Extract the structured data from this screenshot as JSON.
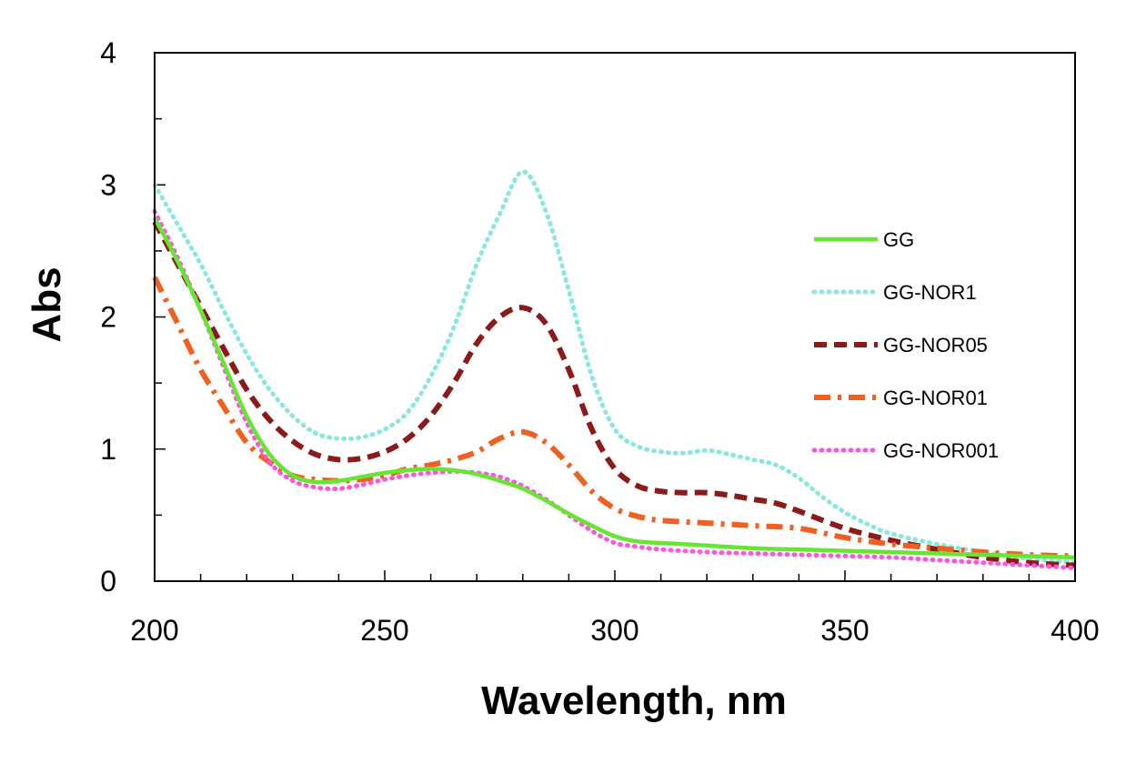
{
  "chart_data": {
    "type": "line",
    "title": "",
    "xlabel": "Wavelength, nm",
    "ylabel": "Abs",
    "xlim": [
      200,
      400
    ],
    "ylim": [
      0,
      4
    ],
    "xticks": [
      200,
      250,
      300,
      350,
      400
    ],
    "yticks": [
      0,
      1,
      2,
      3,
      4
    ],
    "x_minor_step": 10,
    "y_minor_step": 0.5,
    "grid": false,
    "legend_position": "right",
    "series": [
      {
        "name": "GG",
        "color": "#66e633",
        "style": "solid",
        "x": [
          200,
          205,
          210,
          215,
          220,
          225,
          230,
          235,
          240,
          245,
          250,
          255,
          260,
          265,
          270,
          275,
          280,
          285,
          290,
          295,
          300,
          305,
          310,
          320,
          330,
          340,
          350,
          360,
          370,
          380,
          390,
          400
        ],
        "y": [
          2.75,
          2.42,
          2.05,
          1.65,
          1.25,
          0.96,
          0.8,
          0.75,
          0.76,
          0.79,
          0.82,
          0.84,
          0.85,
          0.84,
          0.81,
          0.76,
          0.7,
          0.61,
          0.51,
          0.42,
          0.34,
          0.3,
          0.29,
          0.27,
          0.25,
          0.24,
          0.23,
          0.22,
          0.21,
          0.2,
          0.19,
          0.18
        ]
      },
      {
        "name": "GG-NOR1",
        "color": "#88e8dc",
        "style": "dotted",
        "x": [
          200,
          205,
          210,
          215,
          220,
          225,
          230,
          235,
          240,
          245,
          250,
          255,
          260,
          265,
          270,
          275,
          280,
          285,
          290,
          295,
          300,
          305,
          310,
          315,
          320,
          325,
          330,
          335,
          340,
          345,
          350,
          355,
          360,
          370,
          380,
          390,
          400
        ],
        "y": [
          3.0,
          2.7,
          2.4,
          2.05,
          1.72,
          1.45,
          1.25,
          1.12,
          1.08,
          1.09,
          1.15,
          1.28,
          1.55,
          1.92,
          2.4,
          2.78,
          3.1,
          2.8,
          2.2,
          1.55,
          1.15,
          1.02,
          0.98,
          0.97,
          0.99,
          0.96,
          0.92,
          0.88,
          0.78,
          0.64,
          0.52,
          0.43,
          0.36,
          0.28,
          0.22,
          0.17,
          0.14
        ]
      },
      {
        "name": "GG-NOR05",
        "color": "#8b1a1a",
        "style": "dashed",
        "x": [
          200,
          205,
          210,
          215,
          220,
          225,
          230,
          235,
          240,
          245,
          250,
          255,
          260,
          265,
          270,
          275,
          280,
          285,
          290,
          295,
          300,
          305,
          310,
          315,
          320,
          325,
          330,
          335,
          340,
          350,
          360,
          370,
          380,
          390,
          400
        ],
        "y": [
          2.72,
          2.4,
          2.08,
          1.76,
          1.45,
          1.22,
          1.06,
          0.96,
          0.92,
          0.93,
          0.98,
          1.08,
          1.25,
          1.5,
          1.8,
          2.0,
          2.07,
          1.95,
          1.6,
          1.15,
          0.85,
          0.72,
          0.68,
          0.67,
          0.67,
          0.65,
          0.62,
          0.59,
          0.53,
          0.4,
          0.31,
          0.24,
          0.18,
          0.14,
          0.12
        ]
      },
      {
        "name": "GG-NOR01",
        "color": "#f06020",
        "style": "dashdot",
        "x": [
          200,
          205,
          210,
          215,
          220,
          225,
          230,
          235,
          240,
          245,
          250,
          255,
          260,
          265,
          270,
          275,
          280,
          285,
          290,
          295,
          300,
          305,
          310,
          320,
          330,
          340,
          350,
          360,
          370,
          380,
          390,
          400
        ],
        "y": [
          2.3,
          1.95,
          1.6,
          1.32,
          1.05,
          0.9,
          0.8,
          0.77,
          0.76,
          0.77,
          0.8,
          0.85,
          0.88,
          0.92,
          0.98,
          1.08,
          1.13,
          1.05,
          0.88,
          0.68,
          0.55,
          0.49,
          0.46,
          0.44,
          0.42,
          0.4,
          0.33,
          0.28,
          0.25,
          0.22,
          0.2,
          0.19
        ]
      },
      {
        "name": "GG-NOR001",
        "color": "#ff55dd",
        "style": "dotted",
        "x": [
          200,
          205,
          210,
          215,
          220,
          225,
          230,
          235,
          240,
          245,
          250,
          255,
          260,
          265,
          270,
          275,
          280,
          285,
          290,
          295,
          300,
          305,
          310,
          320,
          330,
          340,
          350,
          360,
          370,
          380,
          390,
          400
        ],
        "y": [
          2.8,
          2.45,
          2.05,
          1.62,
          1.2,
          0.9,
          0.76,
          0.71,
          0.7,
          0.73,
          0.77,
          0.8,
          0.82,
          0.83,
          0.82,
          0.79,
          0.72,
          0.62,
          0.5,
          0.38,
          0.29,
          0.26,
          0.24,
          0.22,
          0.21,
          0.2,
          0.19,
          0.18,
          0.16,
          0.14,
          0.12,
          0.1
        ]
      }
    ]
  }
}
